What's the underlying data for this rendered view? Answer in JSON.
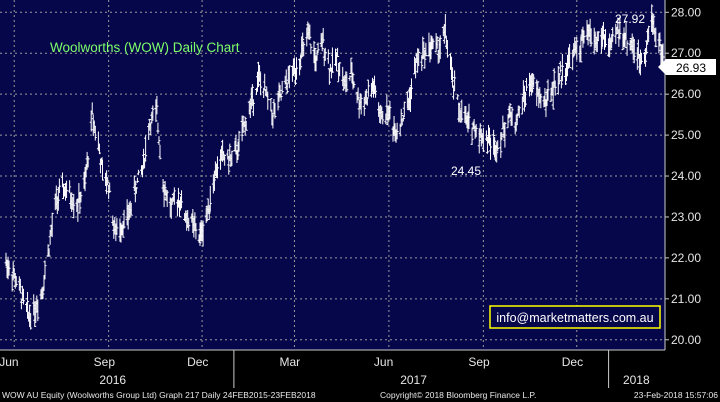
{
  "chart_data": {
    "type": "line",
    "subtype": "ohlc",
    "title": "Woolworths (WOW) Daily Chart",
    "ylim": [
      19.75,
      28.3
    ],
    "yticks": [
      20.0,
      21.0,
      22.0,
      23.0,
      24.0,
      25.0,
      26.0,
      27.0,
      28.0
    ],
    "xticks": [
      "Jun",
      "Sep",
      "Dec",
      "Mar",
      "Jun",
      "Sep",
      "Dec"
    ],
    "xlim": [
      "2016-05-24",
      "2018-02-23"
    ],
    "year_labels": [
      "2016",
      "2017",
      "2018"
    ],
    "last_price": "26.93",
    "annotations": [
      {
        "text": "27.92",
        "x": "2018-02-12",
        "y": 27.92
      },
      {
        "text": "24.45",
        "x": "2017-09-12",
        "y": 24.45
      }
    ],
    "watermark": "info@marketmatters.com.au",
    "series": [
      {
        "x": [
          "2016-05-24",
          "2016-06-02",
          "2016-06-09",
          "2016-06-15",
          "2016-06-22",
          "2016-06-28",
          "2016-07-05",
          "2016-07-12",
          "2016-07-19",
          "2016-07-26",
          "2016-08-02",
          "2016-08-09",
          "2016-08-16",
          "2016-08-22",
          "2016-08-26",
          "2016-09-01",
          "2016-09-07",
          "2016-09-13",
          "2016-09-20",
          "2016-09-27",
          "2016-10-04",
          "2016-10-11",
          "2016-10-18",
          "2016-10-25",
          "2016-11-01",
          "2016-11-08",
          "2016-11-15",
          "2016-11-22",
          "2016-11-29",
          "2016-12-06",
          "2016-12-13",
          "2016-12-20",
          "2016-12-28",
          "2017-01-04",
          "2017-01-11",
          "2017-01-18",
          "2017-01-25",
          "2017-02-01",
          "2017-02-08",
          "2017-02-15",
          "2017-02-22",
          "2017-03-01",
          "2017-03-08",
          "2017-03-15",
          "2017-03-22",
          "2017-03-29",
          "2017-04-05",
          "2017-04-12",
          "2017-04-19",
          "2017-04-26",
          "2017-05-03",
          "2017-05-10",
          "2017-05-17",
          "2017-05-24",
          "2017-05-31",
          "2017-06-07",
          "2017-06-14",
          "2017-06-21",
          "2017-06-28",
          "2017-07-05",
          "2017-07-12",
          "2017-07-19",
          "2017-07-26",
          "2017-08-02",
          "2017-08-09",
          "2017-08-16",
          "2017-08-23",
          "2017-08-30",
          "2017-09-06",
          "2017-09-12",
          "2017-09-19",
          "2017-09-26",
          "2017-10-03",
          "2017-10-10",
          "2017-10-17",
          "2017-10-24",
          "2017-10-31",
          "2017-11-07",
          "2017-11-14",
          "2017-11-21",
          "2017-11-28",
          "2017-12-05",
          "2017-12-12",
          "2017-12-19",
          "2017-12-27",
          "2018-01-03",
          "2018-01-10",
          "2018-01-17",
          "2018-01-24",
          "2018-01-31",
          "2018-02-07",
          "2018-02-12",
          "2018-02-16",
          "2018-02-23"
        ],
        "values": [
          21.9,
          21.5,
          21.0,
          20.6,
          20.8,
          21.2,
          22.3,
          23.4,
          23.7,
          23.5,
          23.3,
          23.8,
          25.5,
          24.8,
          24.0,
          23.8,
          22.6,
          22.8,
          23.0,
          23.7,
          24.2,
          25.3,
          25.5,
          23.7,
          23.2,
          23.5,
          23.0,
          22.8,
          22.5,
          23.1,
          24.0,
          24.5,
          24.4,
          24.6,
          25.2,
          25.8,
          26.4,
          26.0,
          25.5,
          25.9,
          26.3,
          26.6,
          27.0,
          27.4,
          26.8,
          27.3,
          26.6,
          26.9,
          26.2,
          26.5,
          25.8,
          25.9,
          26.2,
          25.4,
          25.6,
          25.1,
          25.4,
          25.9,
          26.8,
          27.0,
          27.2,
          27.1,
          27.5,
          26.3,
          25.6,
          25.3,
          25.2,
          25.0,
          24.9,
          24.7,
          25.0,
          25.5,
          25.3,
          25.9,
          26.3,
          26.0,
          25.8,
          26.1,
          26.4,
          26.7,
          27.0,
          27.2,
          27.5,
          27.3,
          27.4,
          27.1,
          27.6,
          27.4,
          27.2,
          26.8,
          27.2,
          27.9,
          27.5,
          26.93
        ]
      }
    ]
  },
  "footer": {
    "left": "WOW AU Equity (Woolworths Group Ltd) Graph 217  Daily 24FEB2015-23FEB2018",
    "center": "Copyright© 2018 Bloomberg Finance L.P.",
    "right": "23-Feb-2018 15:57:06"
  },
  "colors": {
    "background": "#06064a",
    "grid": "#9a9a9a",
    "bars": "#ffffff",
    "title": "#7dff6a",
    "price_tag_bg": "#ffffff",
    "watermark_border": "#ffff00"
  }
}
